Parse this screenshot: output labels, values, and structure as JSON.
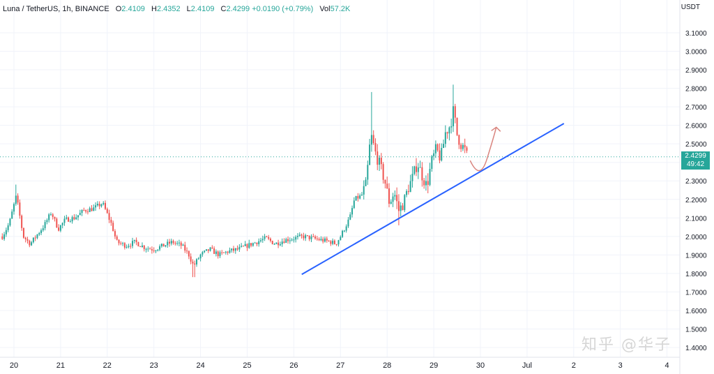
{
  "chart_data": {
    "type": "candlestick",
    "symbol": "Luna / TetherUS, 1h, BINANCE",
    "legend": {
      "o_label": "O",
      "o": "2.4109",
      "h_label": "H",
      "h": "2.4352",
      "l_label": "L",
      "l": "2.4109",
      "c_label": "C",
      "c": "2.4299",
      "change": "+0.0190 (+0.79%)",
      "vol_label": "Vol",
      "vol": "57.2K"
    },
    "currency": "USDT",
    "ylim": [
      1.35,
      3.22
    ],
    "y_ticks": [
      "3.1000",
      "3.0000",
      "2.9000",
      "2.8000",
      "2.7000",
      "2.6000",
      "2.5000",
      "2.4000",
      "2.3000",
      "2.2000",
      "2.1000",
      "2.0000",
      "1.9000",
      "1.8000",
      "1.7000",
      "1.6000",
      "1.5000",
      "1.4000"
    ],
    "x_ticks": [
      {
        "label": "20",
        "day": 20
      },
      {
        "label": "21",
        "day": 21
      },
      {
        "label": "22",
        "day": 22
      },
      {
        "label": "23",
        "day": 23
      },
      {
        "label": "24",
        "day": 24
      },
      {
        "label": "25",
        "day": 25
      },
      {
        "label": "26",
        "day": 26
      },
      {
        "label": "27",
        "day": 27
      },
      {
        "label": "28",
        "day": 28
      },
      {
        "label": "29",
        "day": 29
      },
      {
        "label": "30",
        "day": 30
      },
      {
        "label": "Jul",
        "day": 31
      },
      {
        "label": "2",
        "day": 32
      },
      {
        "label": "3",
        "day": 33
      },
      {
        "label": "4",
        "day": 34
      }
    ],
    "current_price": "2.4299",
    "countdown": "49:42",
    "trendline": {
      "from": {
        "day": 26.17,
        "price": 1.795
      },
      "to": {
        "day": 31.79,
        "price": 2.61
      }
    },
    "arrow": {
      "from": {
        "day": 29.78,
        "price": 2.41
      },
      "to": {
        "day": 30.34,
        "price": 2.59
      }
    },
    "price_path": [
      [
        19.75,
        2.0
      ],
      [
        19.9,
        2.07
      ],
      [
        20.05,
        2.22
      ],
      [
        20.2,
        2.0
      ],
      [
        20.35,
        1.96
      ],
      [
        20.5,
        2.01
      ],
      [
        20.65,
        2.06
      ],
      [
        20.8,
        2.13
      ],
      [
        20.95,
        2.04
      ],
      [
        21.1,
        2.09
      ],
      [
        21.3,
        2.1
      ],
      [
        21.5,
        2.14
      ],
      [
        21.7,
        2.15
      ],
      [
        21.9,
        2.18
      ],
      [
        22.0,
        2.12
      ],
      [
        22.1,
        2.06
      ],
      [
        22.2,
        1.97
      ],
      [
        22.4,
        1.95
      ],
      [
        22.6,
        1.97
      ],
      [
        22.8,
        1.94
      ],
      [
        23.0,
        1.93
      ],
      [
        23.2,
        1.95
      ],
      [
        23.4,
        1.97
      ],
      [
        23.6,
        1.95
      ],
      [
        23.75,
        1.9
      ],
      [
        23.85,
        1.84
      ],
      [
        24.0,
        1.9
      ],
      [
        24.2,
        1.93
      ],
      [
        24.4,
        1.9
      ],
      [
        24.6,
        1.92
      ],
      [
        24.8,
        1.93
      ],
      [
        25.0,
        1.95
      ],
      [
        25.2,
        1.97
      ],
      [
        25.4,
        1.99
      ],
      [
        25.6,
        1.96
      ],
      [
        25.8,
        1.98
      ],
      [
        26.0,
        1.99
      ],
      [
        26.2,
        2.0
      ],
      [
        26.4,
        1.99
      ],
      [
        26.6,
        1.98
      ],
      [
        26.8,
        1.97
      ],
      [
        26.9,
        1.96
      ],
      [
        27.0,
        2.0
      ],
      [
        27.1,
        2.05
      ],
      [
        27.2,
        2.1
      ],
      [
        27.3,
        2.2
      ],
      [
        27.45,
        2.22
      ],
      [
        27.55,
        2.28
      ],
      [
        27.65,
        2.55
      ],
      [
        27.75,
        2.45
      ],
      [
        27.85,
        2.38
      ],
      [
        27.95,
        2.3
      ],
      [
        28.05,
        2.18
      ],
      [
        28.15,
        2.24
      ],
      [
        28.25,
        2.14
      ],
      [
        28.35,
        2.18
      ],
      [
        28.45,
        2.26
      ],
      [
        28.55,
        2.32
      ],
      [
        28.65,
        2.4
      ],
      [
        28.75,
        2.33
      ],
      [
        28.85,
        2.27
      ],
      [
        28.95,
        2.4
      ],
      [
        29.05,
        2.47
      ],
      [
        29.15,
        2.42
      ],
      [
        29.25,
        2.56
      ],
      [
        29.35,
        2.6
      ],
      [
        29.42,
        2.68
      ],
      [
        29.5,
        2.55
      ],
      [
        29.58,
        2.5
      ],
      [
        29.66,
        2.47
      ],
      [
        29.72,
        2.43
      ]
    ]
  },
  "watermark": "知乎 @华子"
}
